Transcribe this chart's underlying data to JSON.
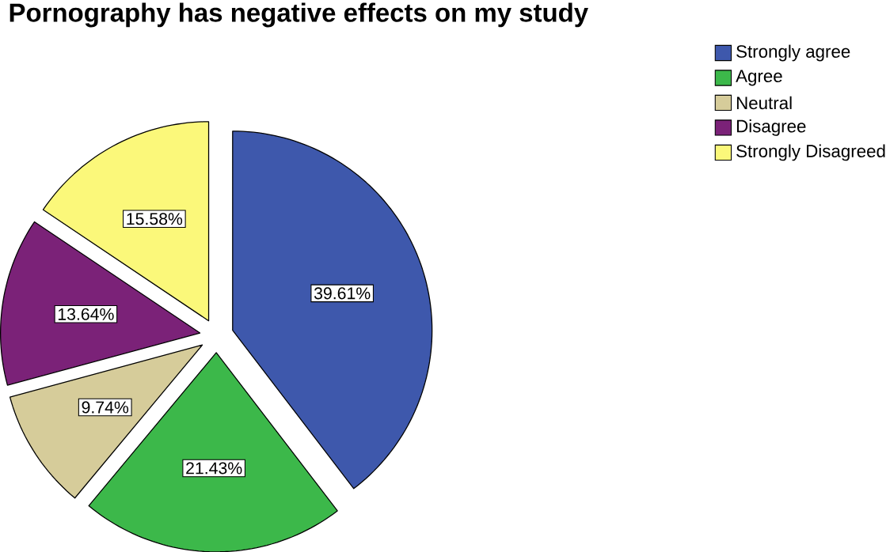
{
  "chart_data": {
    "type": "pie",
    "title": "Pornography has negative effects on my study",
    "categories": [
      "Strongly agree",
      "Agree",
      "Neutral",
      "Disagree",
      "Strongly Disagreed"
    ],
    "values": [
      39.61,
      21.43,
      9.74,
      13.64,
      15.58
    ],
    "value_labels": [
      "39.61%",
      "21.43%",
      "9.74%",
      "13.64%",
      "15.58%"
    ],
    "colors": [
      "#3e58ac",
      "#3cb84a",
      "#d6cc9a",
      "#7b2278",
      "#fbf87a"
    ],
    "legend": "top right"
  }
}
